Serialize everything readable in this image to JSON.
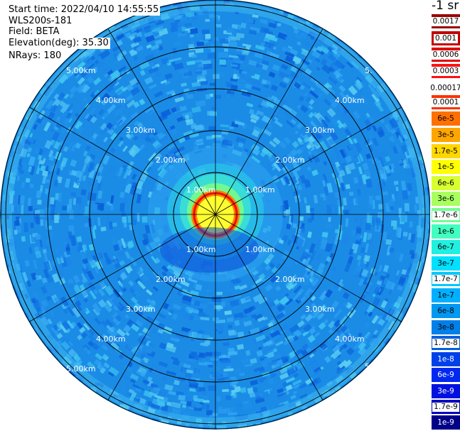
{
  "info": {
    "start_time": "Start time: 2022/04/10 14:55:55",
    "instrument": "WLS200s-181",
    "field": "Field: BETA",
    "elevation": "Elevation(deg): 35.30",
    "nrays": "NRays: 180"
  },
  "plot": {
    "range_max_km": 5.2,
    "ring_ranges_km": [
      1,
      2,
      3,
      4,
      5
    ],
    "spoke_count": 12,
    "range_labels_upper": [
      "1.00km",
      "2.00km",
      "3.00km",
      "4.00km",
      "5.00km"
    ],
    "range_labels_lower": [
      "1.00km",
      "2.00km",
      "3.00km",
      "4.00km",
      "5.00km"
    ],
    "partial_label": "5."
  },
  "colorbar": {
    "unit": "-1 sr",
    "entries": [
      {
        "label": "0.0017",
        "color": "#9a0000",
        "text_color": "#000000",
        "label_bg": "#ffffff"
      },
      {
        "label": "0.001",
        "color": "#c20000",
        "text_color": "#000000",
        "label_bg": "#ffffff"
      },
      {
        "label": "0.0006",
        "color": "#e00000",
        "text_color": "#000000",
        "label_bg": "#ffffff"
      },
      {
        "label": "0.0003",
        "color": "#ff1010",
        "text_color": "#000000",
        "label_bg": "#ffffff"
      },
      {
        "label": "0.00017",
        "color": "#ffffff",
        "text_color": "#000000",
        "label_bg": "transparent"
      },
      {
        "label": "0.0001",
        "color": "#ff3000",
        "text_color": "#000000",
        "label_bg": "#ffffff"
      },
      {
        "label": "6e-5",
        "color": "#ff7000",
        "text_color": "#000000",
        "label_bg": "transparent"
      },
      {
        "label": "3e-5",
        "color": "#ffa500",
        "text_color": "#000000",
        "label_bg": "transparent"
      },
      {
        "label": "1.7e-5",
        "color": "#ffd700",
        "text_color": "#000000",
        "label_bg": "transparent"
      },
      {
        "label": "1e-5",
        "color": "#ffff00",
        "text_color": "#000000",
        "label_bg": "transparent"
      },
      {
        "label": "6e-6",
        "color": "#d8ff30",
        "text_color": "#000000",
        "label_bg": "transparent"
      },
      {
        "label": "3e-6",
        "color": "#a8ff60",
        "text_color": "#000000",
        "label_bg": "transparent"
      },
      {
        "label": "1.7e-6",
        "color": "#70ff90",
        "text_color": "#000000",
        "label_bg": "#ffffff"
      },
      {
        "label": "1e-6",
        "color": "#40ffc0",
        "text_color": "#000000",
        "label_bg": "transparent"
      },
      {
        "label": "6e-7",
        "color": "#20f0e0",
        "text_color": "#000000",
        "label_bg": "transparent"
      },
      {
        "label": "3e-7",
        "color": "#00e0ff",
        "text_color": "#000000",
        "label_bg": "transparent"
      },
      {
        "label": "1.7e-7",
        "color": "#00c8ff",
        "text_color": "#000000",
        "label_bg": "#ffffff"
      },
      {
        "label": "1e-7",
        "color": "#00b0ff",
        "text_color": "#000000",
        "label_bg": "transparent"
      },
      {
        "label": "6e-8",
        "color": "#0098f0",
        "text_color": "#000000",
        "label_bg": "transparent"
      },
      {
        "label": "3e-8",
        "color": "#0080e8",
        "text_color": "#000000",
        "label_bg": "transparent"
      },
      {
        "label": "1.7e-8",
        "color": "#0060e0",
        "text_color": "#000000",
        "label_bg": "#ffffff"
      },
      {
        "label": "1e-8",
        "color": "#0040e8",
        "text_color": "#ffffff",
        "label_bg": "transparent"
      },
      {
        "label": "6e-9",
        "color": "#0028f0",
        "text_color": "#ffffff",
        "label_bg": "transparent"
      },
      {
        "label": "3e-9",
        "color": "#0010e0",
        "text_color": "#ffffff",
        "label_bg": "transparent"
      },
      {
        "label": "1.7e-9",
        "color": "#0000c0",
        "text_color": "#000000",
        "label_bg": "#ffffff"
      },
      {
        "label": "1e-9",
        "color": "#000088",
        "text_color": "#ffffff",
        "label_bg": "transparent"
      }
    ]
  }
}
